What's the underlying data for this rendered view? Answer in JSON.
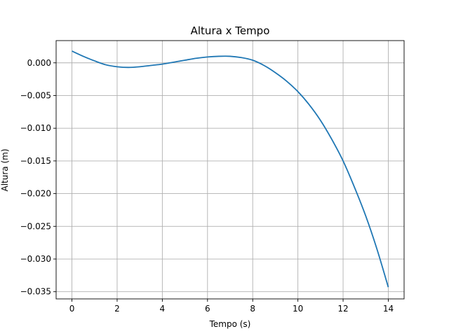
{
  "chart_data": {
    "type": "line",
    "title": "Altura x Tempo",
    "xlabel": "Tempo (s)",
    "ylabel": "Altura (m)",
    "xlim": [
      -0.7,
      14.7
    ],
    "ylim": [
      -0.0361,
      0.0034
    ],
    "xticks": [
      0,
      2,
      4,
      6,
      8,
      10,
      12,
      14
    ],
    "xtick_labels": [
      "0",
      "2",
      "4",
      "6",
      "8",
      "10",
      "12",
      "14"
    ],
    "yticks": [
      0.0,
      -0.005,
      -0.01,
      -0.015,
      -0.02,
      -0.025,
      -0.03,
      -0.035
    ],
    "ytick_labels": [
      "0.000",
      "−0.005",
      "−0.010",
      "−0.015",
      "−0.020",
      "−0.025",
      "−0.030",
      "−0.035"
    ],
    "grid": true,
    "series": [
      {
        "color": "#1f77b4",
        "x": [
          0,
          0.5,
          1,
          1.5,
          2,
          2.5,
          3,
          3.5,
          4,
          4.5,
          5,
          5.5,
          6,
          6.5,
          7,
          7.5,
          8,
          8.5,
          9,
          9.5,
          10,
          10.5,
          11,
          11.5,
          12,
          12.5,
          13,
          13.5,
          14
        ],
        "y": [
          0.0018,
          0.001,
          0.0003,
          -0.0003,
          -0.0006,
          -0.0007,
          -0.0006,
          -0.0004,
          -0.0002,
          0.0001,
          0.0004,
          0.0007,
          0.0009,
          0.001,
          0.001,
          0.0008,
          0.0004,
          -0.0004,
          -0.0015,
          -0.0028,
          -0.0044,
          -0.0064,
          -0.0088,
          -0.0117,
          -0.015,
          -0.019,
          -0.0234,
          -0.0285,
          -0.0343
        ]
      }
    ]
  }
}
